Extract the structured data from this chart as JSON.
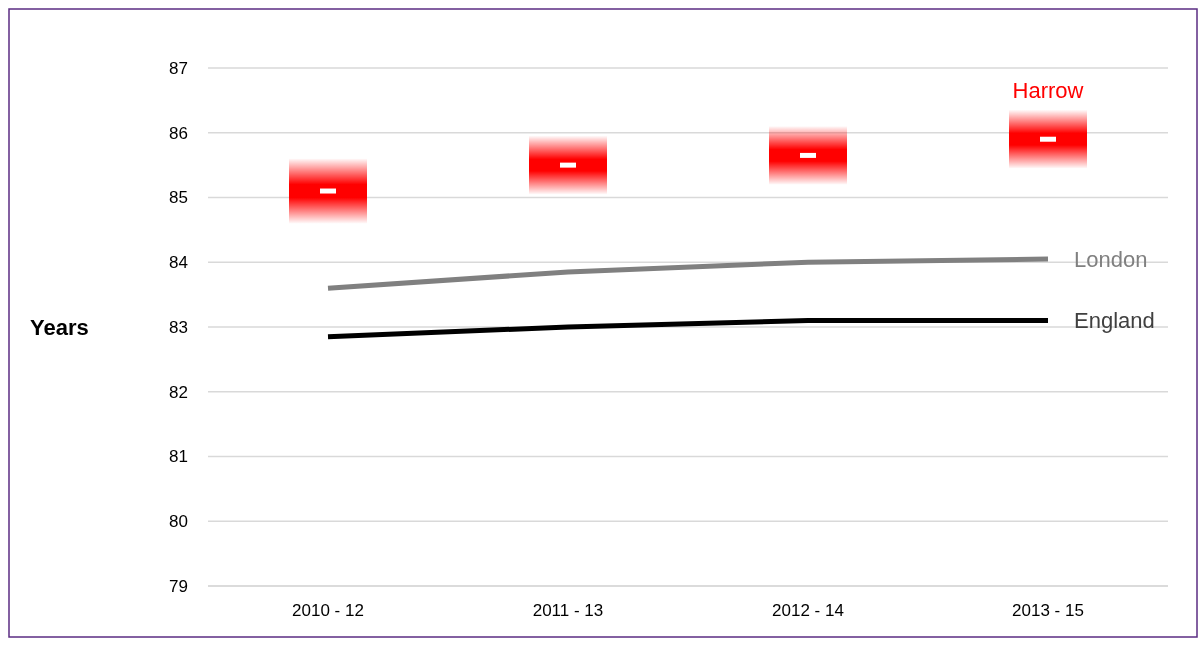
{
  "chart_data": {
    "type": "line",
    "ylabel": "Years",
    "categories": [
      "2010 - 12",
      "2011 - 13",
      "2012 - 14",
      "2013 - 15"
    ],
    "ylim": [
      79,
      87
    ],
    "yticks": [
      79,
      80,
      81,
      82,
      83,
      84,
      85,
      86,
      87
    ],
    "grid": "y",
    "series": [
      {
        "name": "Harrow",
        "type": "scatter",
        "color": "#ff0000",
        "colors": [
          "#ffffff",
          "#ffffff",
          "#ffffff",
          "#ffffff"
        ],
        "values": [
          85.1,
          85.5,
          85.65,
          85.9
        ],
        "errors": [
          [
            84.6,
            85.6
          ],
          [
            85.05,
            85.95
          ],
          [
            85.2,
            86.1
          ],
          [
            85.45,
            86.35
          ]
        ]
      },
      {
        "name": "London",
        "color": "#808080",
        "values": [
          83.6,
          83.85,
          84.0,
          84.05
        ]
      },
      {
        "name": "England",
        "color": "#000000",
        "values": [
          82.85,
          83.0,
          83.1,
          83.1
        ]
      }
    ]
  }
}
